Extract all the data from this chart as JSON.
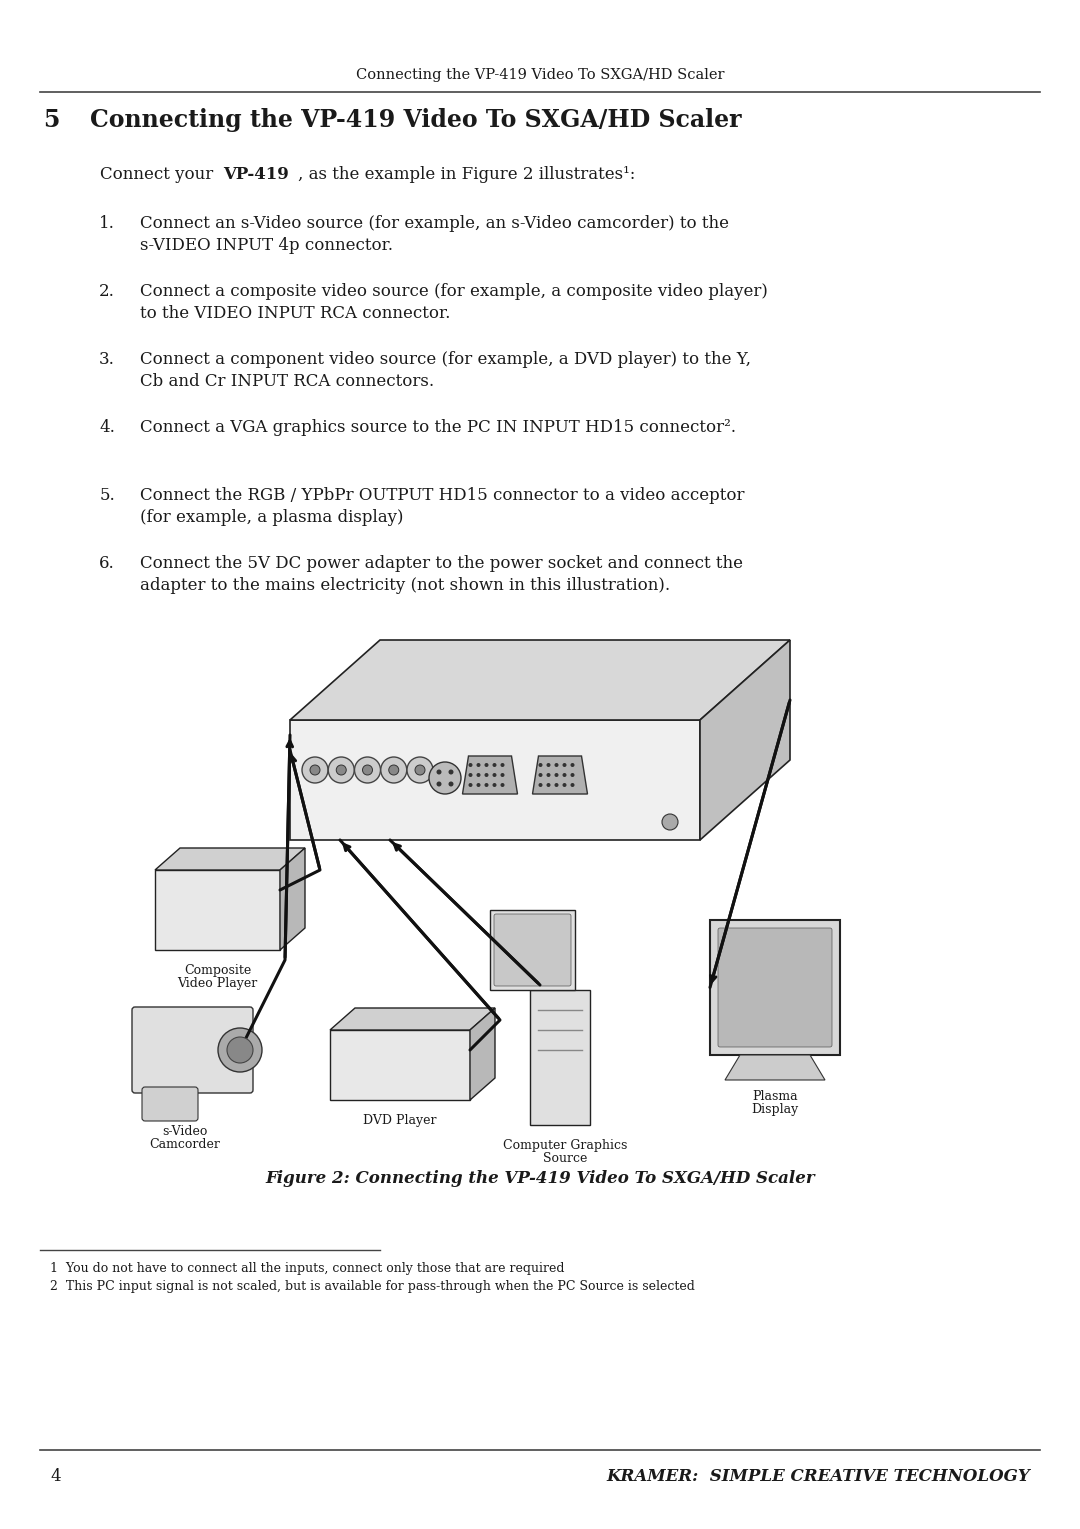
{
  "bg_color": "#ffffff",
  "page_width": 10.8,
  "page_height": 15.29,
  "header_text": "Connecting the VP-419 Video To SXGA/HD Scaler",
  "section_number": "5",
  "section_title": "Connecting the VP-419 Video To SXGA/HD Scaler",
  "list_items": [
    [
      "Connect an s-Video source (for example, an s-Video camcorder) to the",
      "s-VIDEO INPUT 4p connector."
    ],
    [
      "Connect a composite video source (for example, a composite video player)",
      "to the VIDEO INPUT RCA connector."
    ],
    [
      "Connect a component video source (for example, a DVD player) to the Y,",
      "Cb and Cr INPUT RCA connectors."
    ],
    [
      "Connect a VGA graphics source to the PC IN INPUT HD15 connector².",
      ""
    ],
    [
      "Connect the RGB / YPbPr OUTPUT HD15 connector to a video acceptor",
      "(for example, a plasma display)"
    ],
    [
      "Connect the 5V DC power adapter to the power socket and connect the",
      "adapter to the mains electricity (not shown in this illustration)."
    ]
  ],
  "figure_caption": "Figure 2: Connecting the VP-419 Video To SXGA/HD Scaler",
  "footnote1": "1  You do not have to connect all the inputs, connect only those that are required",
  "footnote2": "2  This PC input signal is not scaled, but is available for pass-through when the PC Source is selected",
  "footer_page": "4",
  "footer_brand": "KRAMER:  SIMPLE CREATIVE TECHNOLOGY",
  "text_color": "#1a1a1a",
  "line_color": "#555555",
  "diag_labels": {
    "composite": [
      "Composite",
      "Video Player"
    ],
    "svideo": [
      "s-Video",
      "Camcorder"
    ],
    "dvd": [
      "DVD Player"
    ],
    "computer": [
      "Computer Graphics",
      "Source"
    ],
    "plasma": [
      "Plasma",
      "Display"
    ]
  }
}
